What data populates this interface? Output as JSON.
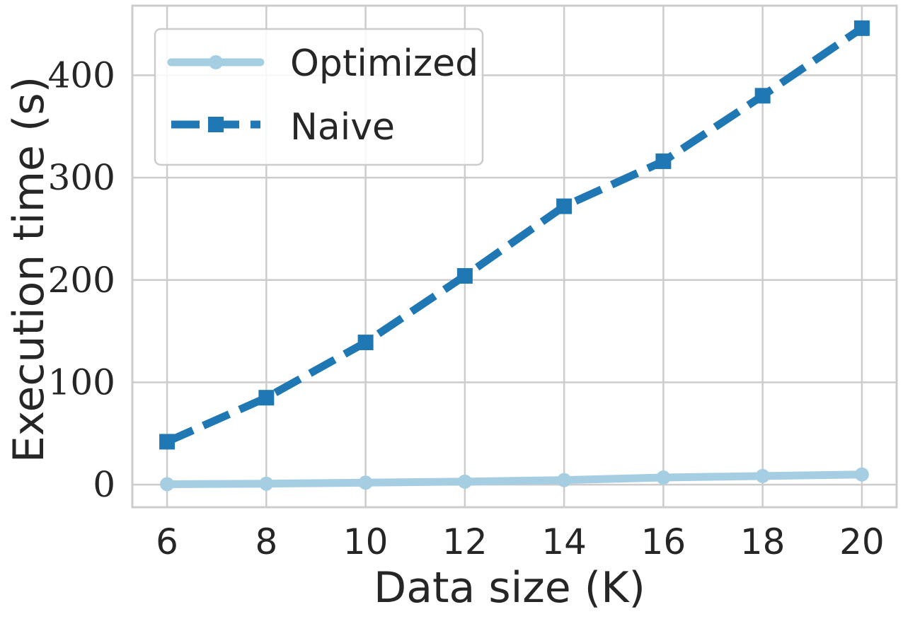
{
  "chart_data": {
    "type": "line",
    "xlabel": "Data size (K)",
    "ylabel": "Execution time (s)",
    "x": [
      6,
      8,
      10,
      12,
      14,
      16,
      18,
      20
    ],
    "xticks": [
      "6",
      "8",
      "10",
      "12",
      "14",
      "16",
      "18",
      "20"
    ],
    "yticks": [
      "0",
      "100",
      "200",
      "300",
      "400"
    ],
    "xlim": [
      5.3,
      20.7
    ],
    "ylim": [
      -22,
      468
    ],
    "grid": true,
    "legend_position": "top-left",
    "series": [
      {
        "name": "Optimized",
        "values": [
          0.5,
          1,
          2,
          3,
          4.5,
          7,
          8.5,
          10
        ],
        "color": "#a6cee3",
        "marker": "circle",
        "linestyle": "solid"
      },
      {
        "name": "Naive",
        "values": [
          42,
          85,
          139,
          204,
          272,
          316,
          380,
          446
        ],
        "color": "#1f78b4",
        "marker": "square",
        "linestyle": "dashed"
      }
    ]
  }
}
